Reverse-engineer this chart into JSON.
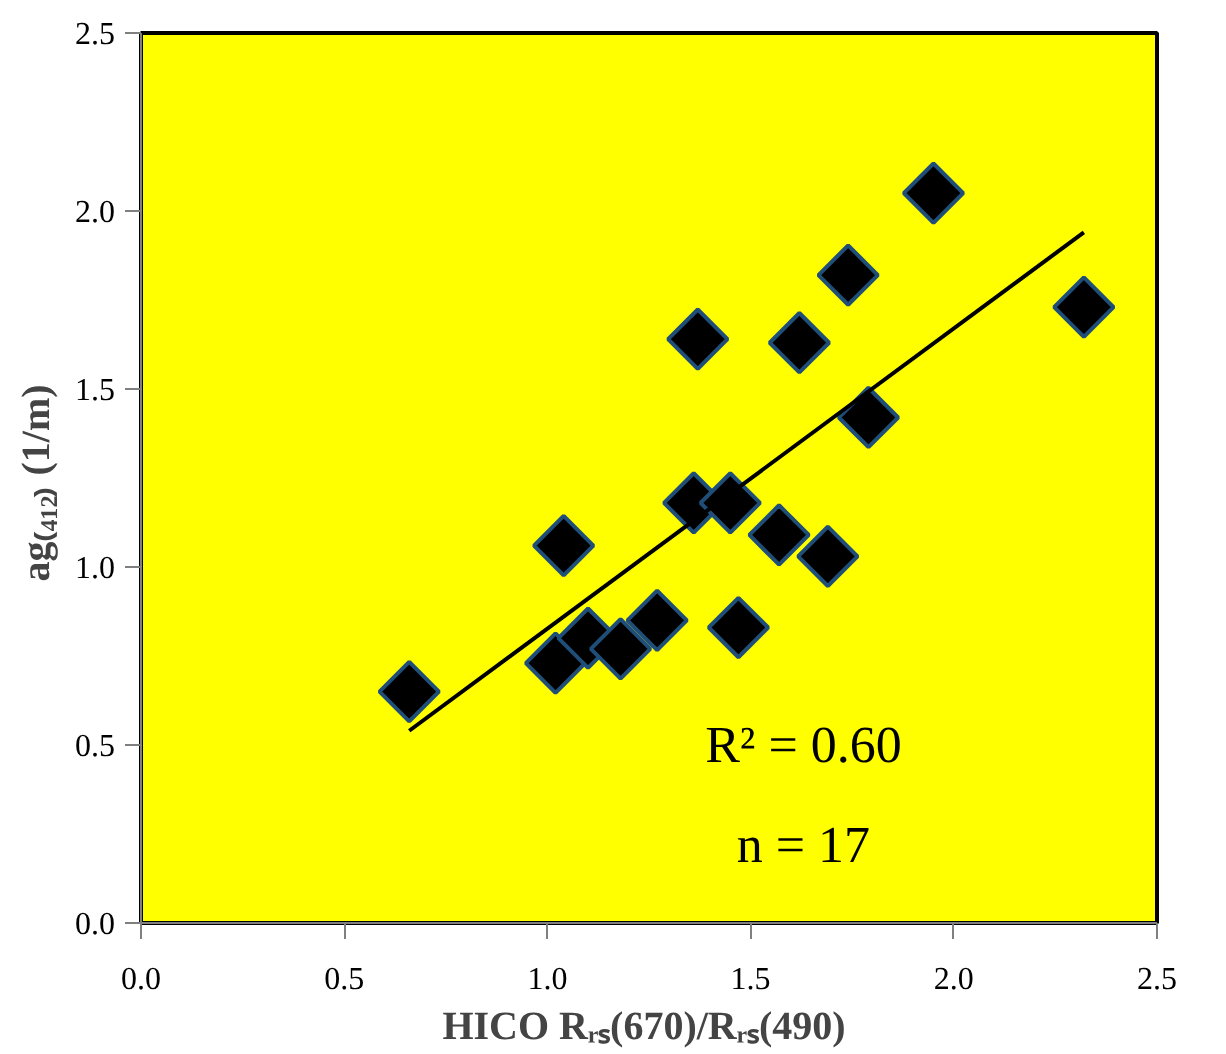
{
  "chart_data": {
    "type": "scatter",
    "xlabel": "HICO  Rᵣₛ(670)/Rᵣₛ(490)",
    "ylabel": "ag₍₄₁₂₎  (1/m)",
    "xlim": [
      0,
      2.5
    ],
    "ylim": [
      0,
      2.5
    ],
    "xticks": [
      {
        "value": 0,
        "label": "0.0"
      },
      {
        "value": 0.5,
        "label": "0.5"
      },
      {
        "value": 1,
        "label": "1.0"
      },
      {
        "value": 1.5,
        "label": "1.5"
      },
      {
        "value": 2,
        "label": "2.0"
      },
      {
        "value": 2.5,
        "label": "2.5"
      }
    ],
    "yticks": [
      {
        "value": 0,
        "label": "0.0"
      },
      {
        "value": 0.5,
        "label": "0.5"
      },
      {
        "value": 1,
        "label": "1.0"
      },
      {
        "value": 1.5,
        "label": "1.5"
      },
      {
        "value": 2,
        "label": "2.0"
      },
      {
        "value": 2.5,
        "label": "2.5"
      }
    ],
    "grid": false,
    "annotations": [
      "R² = 0.60",
      "n = 17"
    ],
    "series": [
      {
        "marker": "diamond",
        "color": "#000000",
        "x": [
          0.66,
          1.02,
          1.04,
          1.1,
          1.18,
          1.27,
          1.36,
          1.37,
          1.45,
          1.47,
          1.57,
          1.62,
          1.69,
          1.74,
          1.79,
          1.95,
          2.32
        ],
        "values": [
          0.65,
          0.73,
          1.06,
          0.8,
          0.77,
          0.85,
          1.18,
          1.64,
          1.18,
          0.83,
          1.09,
          1.63,
          1.03,
          1.82,
          1.42,
          2.05,
          1.73
        ]
      },
      {
        "type": "line",
        "color": "#000000",
        "x": [
          0.66,
          2.32
        ],
        "values": [
          0.54,
          1.94
        ]
      }
    ]
  }
}
